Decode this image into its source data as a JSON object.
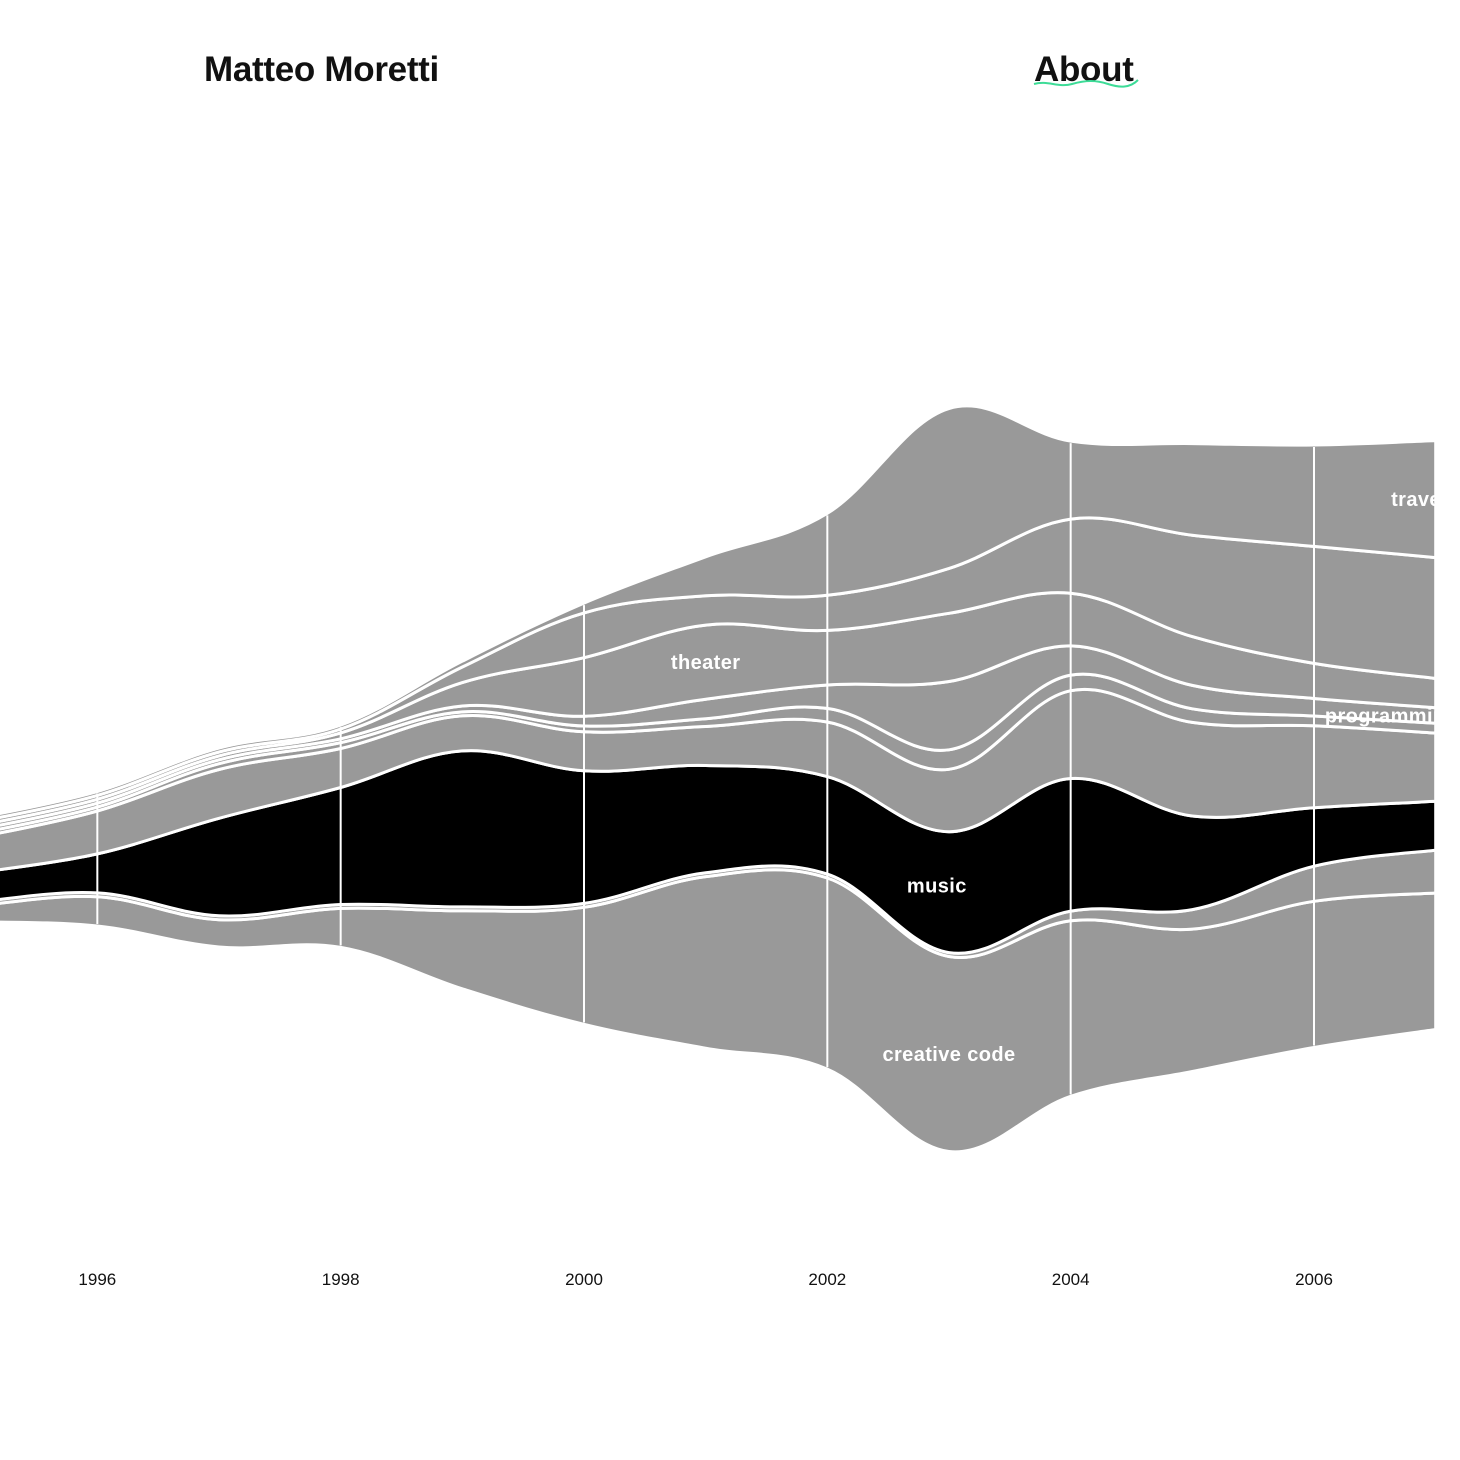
{
  "header": {
    "title": "Matteo Moretti",
    "about_label": "About"
  },
  "colors": {
    "stream": "#999999",
    "highlight": "#000000",
    "separator": "#ffffff",
    "background": "#ffffff",
    "accent": "#3ddc97"
  },
  "chart_data": {
    "type": "area",
    "layout": "streamgraph",
    "x": [
      1995,
      1996,
      1997,
      1998,
      1999,
      2000,
      2001,
      2002,
      2003,
      2004,
      2005,
      2006,
      2007
    ],
    "xlim": [
      1995.2,
      2007.2
    ],
    "year_ticks": [
      "1996",
      "1998",
      "2000",
      "2002",
      "2004",
      "2006"
    ],
    "grid": true,
    "legend": "none",
    "highlighted_series": "music",
    "labels": [
      {
        "text": "theater",
        "series": "theater",
        "x": 2001.0
      },
      {
        "text": "music",
        "series": "music",
        "x": 2002.9
      },
      {
        "text": "creative code",
        "series": "creative code",
        "x": 2003.0
      },
      {
        "text": "travel",
        "series": "travel",
        "x": 2006.95
      },
      {
        "text": "programming",
        "series": "programming",
        "x": 2007.0
      }
    ],
    "series": [
      {
        "name": "creative code",
        "values": [
          8,
          15,
          14,
          20,
          40,
          60,
          88,
          98,
          100,
          90,
          73,
          75,
          70
        ]
      },
      {
        "name": "",
        "values": [
          2,
          2,
          2,
          2,
          2,
          2,
          2,
          2,
          2,
          5,
          10,
          18,
          22
        ]
      },
      {
        "name": "music",
        "values": [
          15,
          20,
          50,
          60,
          80,
          68,
          55,
          50,
          62,
          68,
          48,
          30,
          25
        ]
      },
      {
        "name": "",
        "values": [
          18,
          22,
          25,
          20,
          18,
          20,
          20,
          28,
          32,
          45,
          48,
          42,
          35
        ]
      },
      {
        "name": "",
        "values": [
          2,
          2,
          3,
          3,
          2,
          3,
          4,
          7,
          10,
          8,
          7,
          5,
          5
        ]
      },
      {
        "name": "programming",
        "values": [
          2,
          2,
          2,
          2,
          3,
          5,
          10,
          12,
          35,
          15,
          12,
          9,
          8
        ]
      },
      {
        "name": "theater",
        "values": [
          2,
          2,
          2,
          3,
          12,
          30,
          38,
          28,
          35,
          27,
          25,
          18,
          15
        ]
      },
      {
        "name": "",
        "values": [
          2,
          2,
          2,
          2,
          8,
          23,
          15,
          18,
          23,
          38,
          52,
          60,
          62
        ]
      },
      {
        "name": "travel",
        "values": [
          2,
          2,
          2,
          2,
          3,
          5,
          20,
          42,
          82,
          40,
          47,
          52,
          60
        ]
      }
    ]
  }
}
